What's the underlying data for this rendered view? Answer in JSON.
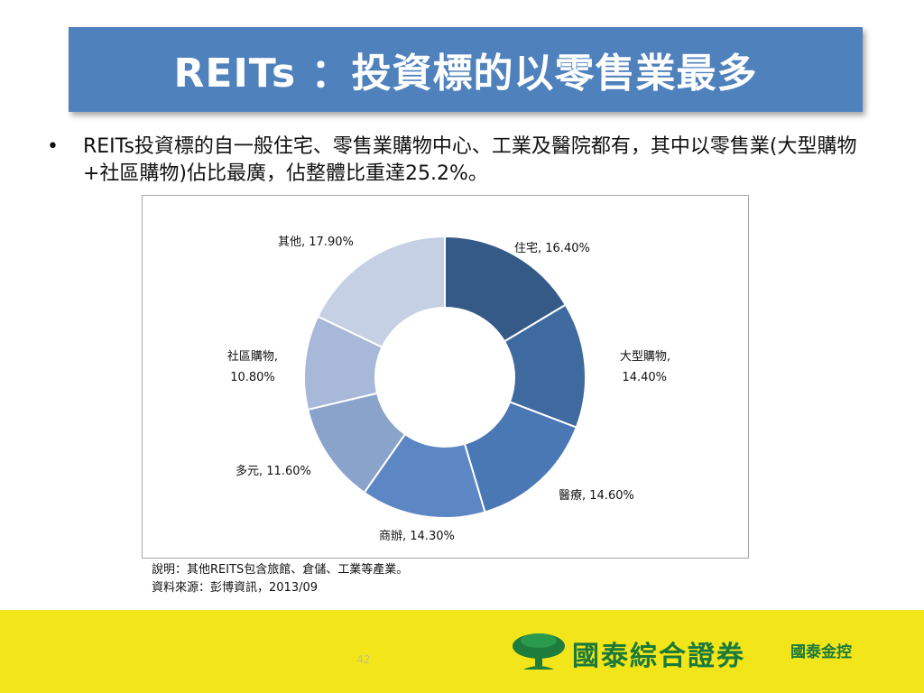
{
  "slide": {
    "title": "REITs ：投資標的以零售業最多",
    "bullet": "REITs投資標的自一般住宅、零售業購物中心、工業及醫院都有，其中以零售業(大型購物+社區購物)佔比最廣，佔整體比重達25.2%。",
    "bullet_marker": "•",
    "note_line1": "說明：其他REITS包含旅館、倉儲、工業等產業。",
    "note_line2": "資料來源：彭博資訊，2013/09",
    "page_number": "42"
  },
  "footer": {
    "brand": "國泰綜合證券",
    "group": "國泰金控"
  },
  "chart_data": {
    "type": "pie",
    "donut": true,
    "title": "",
    "categories": [
      "住宅",
      "大型購物",
      "醫療",
      "商辦",
      "多元",
      "社區購物",
      "其他"
    ],
    "values": [
      16.4,
      14.4,
      14.6,
      14.3,
      11.6,
      10.8,
      17.9
    ],
    "labels": [
      "16.40%",
      "14.40%",
      "14.60%",
      "14.30%",
      "11.60%",
      "10.80%",
      "17.90%"
    ],
    "colors": [
      "#355a87",
      "#3e6aa0",
      "#4a78b5",
      "#5d87c4",
      "#8aa3cb",
      "#a7b8d9",
      "#c5d0e5"
    ],
    "legend": "none"
  }
}
